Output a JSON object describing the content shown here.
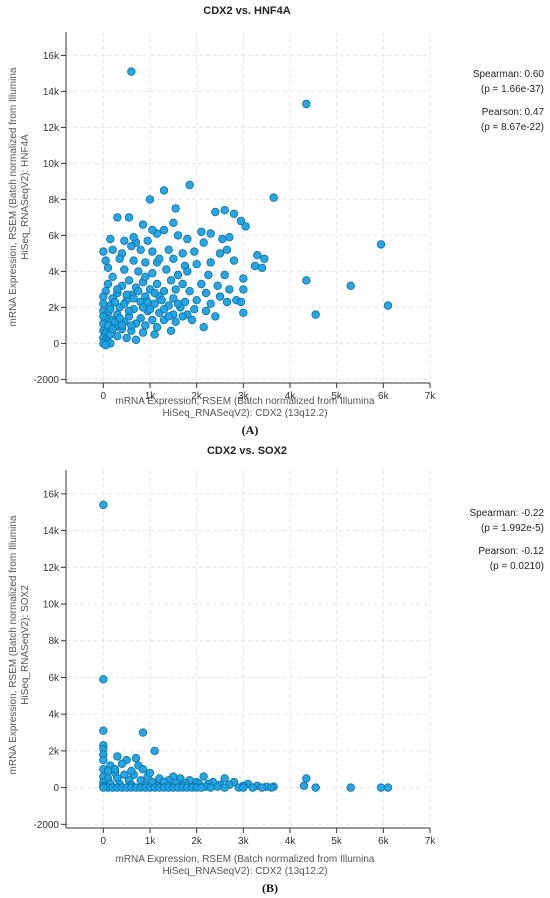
{
  "chart_data": [
    {
      "type": "scatter",
      "title": "CDX2 vs. HNF4A",
      "xlabel": "mRNA Expression, RSEM (Batch normalized from Illumina HiSeq_RNASeqV2): CDX2 (13q12.2)",
      "xlabel_lines": [
        "mRNA Expression, RSEM (Batch normalized from Illumina",
        "HiSeq_RNASeqV2): CDX2 (13q12.2)"
      ],
      "ylabel": "mRNA Expression, RSEM (Batch normalized from Illumina HiSeq_RNASeqV2): HNF4A",
      "ylabel_lines": [
        "mRNA Expression, RSEM (Batch normalized from Illumina",
        "HiSeq_RNASeqV2): HNF4A"
      ],
      "xlim": [
        -800,
        7000
      ],
      "ylim": [
        -2200,
        17300
      ],
      "x_ticks": [
        0,
        1000,
        2000,
        3000,
        4000,
        5000,
        6000,
        7000
      ],
      "x_tick_labels": [
        "0",
        "1k",
        "2k",
        "3k",
        "4k",
        "5k",
        "6k",
        "7k"
      ],
      "y_ticks": [
        -2000,
        0,
        2000,
        4000,
        6000,
        8000,
        10000,
        12000,
        14000,
        16000
      ],
      "y_tick_labels": [
        "-2000",
        "0",
        "2k",
        "4k",
        "6k",
        "8k",
        "10k",
        "12k",
        "14k",
        "16k"
      ],
      "grid": true,
      "stats": [
        {
          "label": "Spearman: 0.60",
          "p": "(p = 1.66e-37)"
        },
        {
          "label": "Pearson: 0.47",
          "p": "(p = 8.67e-22)"
        }
      ],
      "panel_label": "(A)",
      "color": "#1ba1e2",
      "stroke": "#0b6fa4",
      "points": [
        [
          600,
          15100
        ],
        [
          4350,
          13300
        ],
        [
          1300,
          8500
        ],
        [
          1850,
          8800
        ],
        [
          3650,
          8100
        ],
        [
          1000,
          8000
        ],
        [
          1550,
          7500
        ],
        [
          2600,
          7400
        ],
        [
          2800,
          7200
        ],
        [
          2400,
          7300
        ],
        [
          300,
          7000
        ],
        [
          550,
          7000
        ],
        [
          850,
          6600
        ],
        [
          1500,
          6700
        ],
        [
          2950,
          6800
        ],
        [
          1150,
          6100
        ],
        [
          1300,
          6300
        ],
        [
          1600,
          6000
        ],
        [
          2100,
          6200
        ],
        [
          2300,
          6100
        ],
        [
          3050,
          6500
        ],
        [
          5950,
          5500
        ],
        [
          2700,
          5900
        ],
        [
          150,
          5800
        ],
        [
          450,
          5700
        ],
        [
          700,
          5600
        ],
        [
          950,
          5700
        ],
        [
          1800,
          5800
        ],
        [
          2150,
          5600
        ],
        [
          2550,
          5800
        ],
        [
          0,
          5100
        ],
        [
          200,
          5200
        ],
        [
          400,
          5000
        ],
        [
          600,
          5400
        ],
        [
          800,
          5200
        ],
        [
          1050,
          5100
        ],
        [
          1400,
          5200
        ],
        [
          1700,
          5000
        ],
        [
          1950,
          5100
        ],
        [
          2500,
          5000
        ],
        [
          2650,
          5200
        ],
        [
          3300,
          4900
        ],
        [
          3450,
          4700
        ],
        [
          50,
          4600
        ],
        [
          350,
          4700
        ],
        [
          650,
          4600
        ],
        [
          900,
          4500
        ],
        [
          1150,
          4500
        ],
        [
          1500,
          4700
        ],
        [
          1750,
          4300
        ],
        [
          2000,
          4400
        ],
        [
          2300,
          4500
        ],
        [
          2800,
          4600
        ],
        [
          3250,
          4300
        ],
        [
          3400,
          4200
        ],
        [
          100,
          4200
        ],
        [
          450,
          4100
        ],
        [
          750,
          4000
        ],
        [
          1050,
          3900
        ],
        [
          1350,
          4100
        ],
        [
          1600,
          3800
        ],
        [
          1800,
          4000
        ],
        [
          2250,
          3800
        ],
        [
          2600,
          3800
        ],
        [
          3000,
          3600
        ],
        [
          4350,
          3500
        ],
        [
          5300,
          3200
        ],
        [
          200,
          3700
        ],
        [
          550,
          3500
        ],
        [
          850,
          3400
        ],
        [
          1150,
          3300
        ],
        [
          1450,
          3500
        ],
        [
          1700,
          3300
        ],
        [
          2100,
          3300
        ],
        [
          2450,
          3200
        ],
        [
          2700,
          3000
        ],
        [
          3000,
          3000
        ],
        [
          100,
          3300
        ],
        [
          400,
          3200
        ],
        [
          700,
          3100
        ],
        [
          1000,
          3000
        ],
        [
          1300,
          2900
        ],
        [
          1550,
          3000
        ],
        [
          1850,
          2900
        ],
        [
          2200,
          2800
        ],
        [
          2500,
          2600
        ],
        [
          2850,
          2400
        ],
        [
          6100,
          2100
        ],
        [
          50,
          2900
        ],
        [
          300,
          2800
        ],
        [
          600,
          2700
        ],
        [
          900,
          2600
        ],
        [
          1200,
          2600
        ],
        [
          1500,
          2500
        ],
        [
          1750,
          2300
        ],
        [
          2000,
          2400
        ],
        [
          2300,
          2200
        ],
        [
          2650,
          2300
        ],
        [
          2950,
          2300
        ],
        [
          4550,
          1600
        ],
        [
          0,
          2600
        ],
        [
          200,
          2500
        ],
        [
          500,
          2400
        ],
        [
          800,
          2300
        ],
        [
          1100,
          2200
        ],
        [
          1400,
          2100
        ],
        [
          1650,
          2000
        ],
        [
          1950,
          1900
        ],
        [
          2200,
          1800
        ],
        [
          2400,
          1500
        ],
        [
          3000,
          1700
        ],
        [
          0,
          2200
        ],
        [
          150,
          2100
        ],
        [
          350,
          2000
        ],
        [
          650,
          1900
        ],
        [
          950,
          1800
        ],
        [
          1200,
          1700
        ],
        [
          1500,
          1600
        ],
        [
          1800,
          1600
        ],
        [
          2150,
          900
        ],
        [
          0,
          1800
        ],
        [
          100,
          1700
        ],
        [
          300,
          1600
        ],
        [
          550,
          1500
        ],
        [
          800,
          1400
        ],
        [
          1050,
          1300
        ],
        [
          1300,
          1300
        ],
        [
          1550,
          1200
        ],
        [
          50,
          1400
        ],
        [
          200,
          1300
        ],
        [
          450,
          1200
        ],
        [
          700,
          1100
        ],
        [
          900,
          1000
        ],
        [
          1150,
          900
        ],
        [
          1450,
          700
        ],
        [
          0,
          1100
        ],
        [
          100,
          1000
        ],
        [
          250,
          900
        ],
        [
          400,
          800
        ],
        [
          600,
          700
        ],
        [
          850,
          600
        ],
        [
          1100,
          500
        ],
        [
          0,
          700
        ],
        [
          50,
          600
        ],
        [
          150,
          500
        ],
        [
          300,
          400
        ],
        [
          500,
          300
        ],
        [
          700,
          200
        ],
        [
          0,
          300
        ],
        [
          50,
          200
        ],
        [
          100,
          100
        ],
        [
          150,
          0
        ],
        [
          0,
          0
        ],
        [
          50,
          -100
        ],
        [
          250,
          1200
        ],
        [
          350,
          1400
        ],
        [
          150,
          1900
        ],
        [
          250,
          2300
        ],
        [
          450,
          2200
        ],
        [
          650,
          2500
        ],
        [
          950,
          2300
        ],
        [
          1250,
          2400
        ],
        [
          1100,
          2800
        ],
        [
          850,
          2000
        ],
        [
          550,
          1800
        ],
        [
          400,
          1000
        ],
        [
          600,
          1000
        ],
        [
          200,
          800
        ],
        [
          0,
          1500
        ],
        [
          500,
          2700
        ],
        [
          750,
          2900
        ],
        [
          300,
          3000
        ],
        [
          1000,
          1900
        ],
        [
          1300,
          1900
        ],
        [
          1600,
          2200
        ],
        [
          1400,
          1500
        ],
        [
          1900,
          1300
        ],
        [
          1700,
          1500
        ],
        [
          900,
          3700
        ],
        [
          1200,
          4700
        ],
        [
          650,
          5900
        ],
        [
          1050,
          6300
        ]
      ]
    },
    {
      "type": "scatter",
      "title": "CDX2 vs. SOX2",
      "xlabel": "mRNA Expression, RSEM (Batch normalized from Illumina HiSeq_RNASeqV2): CDX2 (13q12.2)",
      "xlabel_lines": [
        "mRNA Expression, RSEM (Batch normalized from Illumina",
        "HiSeq_RNASeqV2): CDX2 (13q12.2)"
      ],
      "ylabel": "mRNA Expression, RSEM (Batch normalized from Illumina HiSeq_RNASeqV2): SOX2",
      "ylabel_lines": [
        "mRNA Expression, RSEM (Batch normalized from Illumina",
        "HiSeq_RNASeqV2): SOX2"
      ],
      "xlim": [
        -800,
        7000
      ],
      "ylim": [
        -2200,
        17300
      ],
      "x_ticks": [
        0,
        1000,
        2000,
        3000,
        4000,
        5000,
        6000,
        7000
      ],
      "x_tick_labels": [
        "0",
        "1k",
        "2k",
        "3k",
        "4k",
        "5k",
        "6k",
        "7k"
      ],
      "y_ticks": [
        -2000,
        0,
        2000,
        4000,
        6000,
        8000,
        10000,
        12000,
        14000,
        16000
      ],
      "y_tick_labels": [
        "-2000",
        "0",
        "2k",
        "4k",
        "6k",
        "8k",
        "10k",
        "12k",
        "14k",
        "16k"
      ],
      "grid": true,
      "stats": [
        {
          "label": "Spearman: -0.22",
          "p": "(p = 1.992e-5)"
        },
        {
          "label": "Pearson: -0.12",
          "p": "(p = 0.0210)"
        }
      ],
      "panel_label": "(B)",
      "color": "#1ba1e2",
      "stroke": "#0b6fa4",
      "points": [
        [
          0,
          15400
        ],
        [
          0,
          5900
        ],
        [
          0,
          3100
        ],
        [
          850,
          3000
        ],
        [
          0,
          2300
        ],
        [
          0,
          2100
        ],
        [
          1100,
          2000
        ],
        [
          300,
          1700
        ],
        [
          500,
          1500
        ],
        [
          700,
          1600
        ],
        [
          750,
          1200
        ],
        [
          400,
          1300
        ],
        [
          150,
          1200
        ],
        [
          850,
          1000
        ],
        [
          1500,
          600
        ],
        [
          2150,
          600
        ],
        [
          2600,
          500
        ],
        [
          4350,
          500
        ],
        [
          0,
          1800
        ],
        [
          0,
          1500
        ],
        [
          0,
          1000
        ],
        [
          100,
          900
        ],
        [
          250,
          800
        ],
        [
          450,
          700
        ],
        [
          650,
          700
        ],
        [
          950,
          600
        ],
        [
          1200,
          500
        ],
        [
          1400,
          400
        ],
        [
          1650,
          500
        ],
        [
          1850,
          400
        ],
        [
          2000,
          300
        ],
        [
          2350,
          300
        ],
        [
          2800,
          300
        ],
        [
          3100,
          200
        ],
        [
          0,
          600
        ],
        [
          100,
          500
        ],
        [
          300,
          500
        ],
        [
          550,
          400
        ],
        [
          800,
          400
        ],
        [
          1050,
          300
        ],
        [
          1300,
          300
        ],
        [
          1550,
          250
        ],
        [
          1750,
          250
        ],
        [
          2050,
          200
        ],
        [
          2250,
          200
        ],
        [
          2500,
          150
        ],
        [
          2700,
          150
        ],
        [
          3000,
          100
        ],
        [
          3300,
          100
        ],
        [
          3500,
          50
        ],
        [
          3650,
          50
        ],
        [
          0,
          300
        ],
        [
          150,
          200
        ],
        [
          350,
          200
        ],
        [
          600,
          150
        ],
        [
          900,
          150
        ],
        [
          1150,
          100
        ],
        [
          1400,
          100
        ],
        [
          1700,
          100
        ],
        [
          1950,
          50
        ],
        [
          2200,
          50
        ],
        [
          2450,
          50
        ],
        [
          2900,
          0
        ],
        [
          3200,
          0
        ],
        [
          3400,
          0
        ],
        [
          4300,
          100
        ],
        [
          4550,
          0
        ],
        [
          5300,
          0
        ],
        [
          5950,
          0
        ],
        [
          6100,
          0
        ],
        [
          0,
          100
        ],
        [
          50,
          50
        ],
        [
          100,
          0
        ],
        [
          200,
          0
        ],
        [
          300,
          0
        ],
        [
          400,
          0
        ],
        [
          500,
          0
        ],
        [
          600,
          0
        ],
        [
          700,
          0
        ],
        [
          800,
          0
        ],
        [
          900,
          0
        ],
        [
          1000,
          0
        ],
        [
          1100,
          0
        ],
        [
          1200,
          0
        ],
        [
          1300,
          0
        ],
        [
          1400,
          0
        ],
        [
          1500,
          0
        ],
        [
          1600,
          0
        ],
        [
          1700,
          0
        ],
        [
          1800,
          0
        ],
        [
          1900,
          0
        ],
        [
          2000,
          0
        ],
        [
          2100,
          0
        ],
        [
          2300,
          0
        ],
        [
          2600,
          0
        ],
        [
          3000,
          0
        ],
        [
          3600,
          0
        ],
        [
          0,
          0
        ],
        [
          250,
          1000
        ],
        [
          600,
          900
        ],
        [
          1000,
          800
        ]
      ]
    }
  ]
}
